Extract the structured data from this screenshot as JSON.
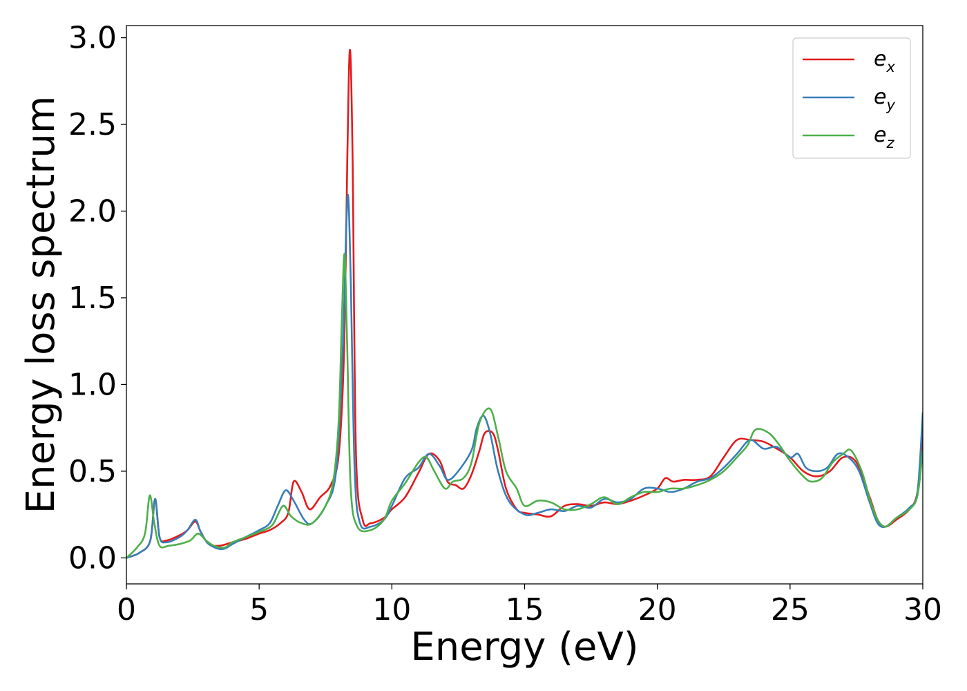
{
  "chart_data": {
    "type": "line",
    "xlabel": "Energy (eV)",
    "ylabel": "Energy loss spectrum",
    "xlim": [
      0,
      30
    ],
    "ylim": [
      -0.15,
      3.07
    ],
    "xticks": [
      0,
      5,
      10,
      15,
      20,
      25,
      30
    ],
    "yticks": [
      0.0,
      0.5,
      1.0,
      1.5,
      2.0,
      2.5,
      3.0
    ],
    "xtick_labels": [
      "0",
      "5",
      "10",
      "15",
      "20",
      "25",
      "30"
    ],
    "ytick_labels": [
      "0.0",
      "0.5",
      "1.0",
      "1.5",
      "2.0",
      "2.5",
      "3.0"
    ],
    "grid": false,
    "legend_position": "top-right",
    "series": [
      {
        "name": "e_x",
        "label_base": "e",
        "label_sub": "x",
        "color": "#e41a1c",
        "points": [
          [
            0,
            0
          ],
          [
            0.5,
            0.03
          ],
          [
            0.9,
            0.1
          ],
          [
            1.08,
            0.34
          ],
          [
            1.25,
            0.12
          ],
          [
            1.5,
            0.1
          ],
          [
            2.0,
            0.13
          ],
          [
            2.3,
            0.16
          ],
          [
            2.6,
            0.21
          ],
          [
            2.8,
            0.15
          ],
          [
            3.1,
            0.08
          ],
          [
            3.5,
            0.07
          ],
          [
            4.0,
            0.09
          ],
          [
            4.5,
            0.11
          ],
          [
            5.0,
            0.14
          ],
          [
            5.4,
            0.16
          ],
          [
            5.8,
            0.2
          ],
          [
            6.1,
            0.26
          ],
          [
            6.3,
            0.44
          ],
          [
            6.6,
            0.38
          ],
          [
            6.9,
            0.28
          ],
          [
            7.3,
            0.35
          ],
          [
            7.7,
            0.42
          ],
          [
            8.0,
            0.6
          ],
          [
            8.2,
            1.2
          ],
          [
            8.32,
            2.3
          ],
          [
            8.42,
            2.93
          ],
          [
            8.52,
            2.3
          ],
          [
            8.65,
            0.6
          ],
          [
            8.9,
            0.22
          ],
          [
            9.2,
            0.2
          ],
          [
            9.7,
            0.23
          ],
          [
            10.0,
            0.28
          ],
          [
            10.5,
            0.35
          ],
          [
            11.0,
            0.49
          ],
          [
            11.4,
            0.6
          ],
          [
            11.8,
            0.56
          ],
          [
            12.1,
            0.44
          ],
          [
            12.4,
            0.42
          ],
          [
            12.7,
            0.4
          ],
          [
            13.0,
            0.48
          ],
          [
            13.3,
            0.62
          ],
          [
            13.5,
            0.72
          ],
          [
            13.8,
            0.72
          ],
          [
            14.0,
            0.62
          ],
          [
            14.3,
            0.4
          ],
          [
            14.7,
            0.28
          ],
          [
            15.0,
            0.26
          ],
          [
            15.5,
            0.25
          ],
          [
            16.0,
            0.24
          ],
          [
            16.5,
            0.3
          ],
          [
            17.0,
            0.31
          ],
          [
            17.5,
            0.3
          ],
          [
            18.0,
            0.32
          ],
          [
            18.5,
            0.31
          ],
          [
            19.0,
            0.33
          ],
          [
            19.5,
            0.36
          ],
          [
            20.0,
            0.4
          ],
          [
            20.3,
            0.46
          ],
          [
            20.6,
            0.44
          ],
          [
            21.0,
            0.45
          ],
          [
            21.5,
            0.45
          ],
          [
            22.0,
            0.47
          ],
          [
            22.5,
            0.58
          ],
          [
            23.0,
            0.68
          ],
          [
            23.5,
            0.68
          ],
          [
            24.0,
            0.67
          ],
          [
            24.5,
            0.63
          ],
          [
            25.0,
            0.58
          ],
          [
            25.5,
            0.5
          ],
          [
            26.0,
            0.47
          ],
          [
            26.5,
            0.5
          ],
          [
            27.0,
            0.58
          ],
          [
            27.5,
            0.55
          ],
          [
            28.0,
            0.35
          ],
          [
            28.3,
            0.22
          ],
          [
            28.6,
            0.18
          ],
          [
            29.0,
            0.22
          ],
          [
            29.5,
            0.28
          ],
          [
            29.8,
            0.38
          ],
          [
            30.0,
            0.7
          ]
        ]
      },
      {
        "name": "e_y",
        "label_base": "e",
        "label_sub": "y",
        "color": "#377eb8",
        "points": [
          [
            0,
            0
          ],
          [
            0.5,
            0.03
          ],
          [
            0.9,
            0.1
          ],
          [
            1.08,
            0.34
          ],
          [
            1.25,
            0.12
          ],
          [
            1.5,
            0.09
          ],
          [
            2.0,
            0.12
          ],
          [
            2.3,
            0.16
          ],
          [
            2.6,
            0.22
          ],
          [
            2.8,
            0.15
          ],
          [
            3.1,
            0.08
          ],
          [
            3.6,
            0.05
          ],
          [
            4.0,
            0.08
          ],
          [
            4.5,
            0.12
          ],
          [
            5.0,
            0.16
          ],
          [
            5.4,
            0.2
          ],
          [
            5.7,
            0.3
          ],
          [
            6.0,
            0.39
          ],
          [
            6.3,
            0.33
          ],
          [
            6.7,
            0.22
          ],
          [
            7.0,
            0.2
          ],
          [
            7.5,
            0.3
          ],
          [
            7.9,
            0.5
          ],
          [
            8.15,
            1.2
          ],
          [
            8.28,
            1.9
          ],
          [
            8.36,
            2.08
          ],
          [
            8.45,
            1.6
          ],
          [
            8.6,
            0.5
          ],
          [
            8.8,
            0.2
          ],
          [
            9.2,
            0.18
          ],
          [
            9.7,
            0.22
          ],
          [
            10.0,
            0.3
          ],
          [
            10.5,
            0.46
          ],
          [
            11.0,
            0.52
          ],
          [
            11.4,
            0.6
          ],
          [
            11.8,
            0.53
          ],
          [
            12.1,
            0.45
          ],
          [
            12.5,
            0.5
          ],
          [
            13.0,
            0.62
          ],
          [
            13.2,
            0.75
          ],
          [
            13.45,
            0.82
          ],
          [
            13.7,
            0.72
          ],
          [
            14.0,
            0.5
          ],
          [
            14.4,
            0.33
          ],
          [
            15.0,
            0.25
          ],
          [
            15.5,
            0.26
          ],
          [
            16.0,
            0.28
          ],
          [
            16.5,
            0.27
          ],
          [
            17.0,
            0.3
          ],
          [
            17.5,
            0.29
          ],
          [
            18.0,
            0.34
          ],
          [
            18.5,
            0.32
          ],
          [
            19.0,
            0.34
          ],
          [
            19.5,
            0.4
          ],
          [
            20.0,
            0.4
          ],
          [
            20.5,
            0.38
          ],
          [
            21.0,
            0.4
          ],
          [
            21.5,
            0.44
          ],
          [
            22.0,
            0.46
          ],
          [
            22.5,
            0.52
          ],
          [
            23.0,
            0.6
          ],
          [
            23.5,
            0.68
          ],
          [
            24.0,
            0.63
          ],
          [
            24.5,
            0.64
          ],
          [
            25.0,
            0.58
          ],
          [
            25.3,
            0.6
          ],
          [
            25.6,
            0.52
          ],
          [
            26.0,
            0.5
          ],
          [
            26.4,
            0.52
          ],
          [
            26.8,
            0.6
          ],
          [
            27.2,
            0.58
          ],
          [
            27.6,
            0.5
          ],
          [
            28.0,
            0.32
          ],
          [
            28.3,
            0.2
          ],
          [
            28.6,
            0.18
          ],
          [
            29.0,
            0.23
          ],
          [
            29.5,
            0.29
          ],
          [
            29.8,
            0.38
          ],
          [
            30.0,
            0.84
          ]
        ]
      },
      {
        "name": "e_z",
        "label_base": "e",
        "label_sub": "z",
        "color": "#4daf4a",
        "points": [
          [
            0,
            0
          ],
          [
            0.4,
            0.06
          ],
          [
            0.7,
            0.14
          ],
          [
            0.88,
            0.36
          ],
          [
            1.05,
            0.2
          ],
          [
            1.25,
            0.07
          ],
          [
            1.6,
            0.07
          ],
          [
            2.0,
            0.08
          ],
          [
            2.4,
            0.1
          ],
          [
            2.7,
            0.14
          ],
          [
            3.0,
            0.1
          ],
          [
            3.3,
            0.07
          ],
          [
            3.7,
            0.06
          ],
          [
            4.0,
            0.09
          ],
          [
            4.5,
            0.12
          ],
          [
            5.0,
            0.15
          ],
          [
            5.5,
            0.19
          ],
          [
            5.9,
            0.3
          ],
          [
            6.2,
            0.24
          ],
          [
            6.6,
            0.2
          ],
          [
            7.0,
            0.2
          ],
          [
            7.5,
            0.3
          ],
          [
            7.8,
            0.45
          ],
          [
            8.0,
            0.8
          ],
          [
            8.12,
            1.4
          ],
          [
            8.22,
            1.75
          ],
          [
            8.32,
            1.2
          ],
          [
            8.45,
            0.4
          ],
          [
            8.7,
            0.18
          ],
          [
            9.2,
            0.16
          ],
          [
            9.7,
            0.22
          ],
          [
            10.0,
            0.33
          ],
          [
            10.5,
            0.43
          ],
          [
            11.0,
            0.55
          ],
          [
            11.3,
            0.58
          ],
          [
            11.6,
            0.5
          ],
          [
            12.0,
            0.4
          ],
          [
            12.3,
            0.44
          ],
          [
            12.7,
            0.46
          ],
          [
            13.0,
            0.55
          ],
          [
            13.3,
            0.78
          ],
          [
            13.7,
            0.86
          ],
          [
            14.0,
            0.7
          ],
          [
            14.3,
            0.5
          ],
          [
            14.7,
            0.4
          ],
          [
            15.0,
            0.3
          ],
          [
            15.5,
            0.33
          ],
          [
            16.0,
            0.32
          ],
          [
            16.5,
            0.28
          ],
          [
            17.0,
            0.28
          ],
          [
            17.5,
            0.31
          ],
          [
            18.0,
            0.35
          ],
          [
            18.5,
            0.31
          ],
          [
            19.0,
            0.35
          ],
          [
            19.5,
            0.38
          ],
          [
            20.0,
            0.38
          ],
          [
            20.5,
            0.4
          ],
          [
            21.0,
            0.4
          ],
          [
            21.5,
            0.42
          ],
          [
            22.0,
            0.45
          ],
          [
            22.5,
            0.5
          ],
          [
            23.0,
            0.58
          ],
          [
            23.4,
            0.65
          ],
          [
            23.7,
            0.74
          ],
          [
            24.2,
            0.72
          ],
          [
            24.6,
            0.65
          ],
          [
            25.0,
            0.56
          ],
          [
            25.5,
            0.47
          ],
          [
            25.8,
            0.44
          ],
          [
            26.2,
            0.46
          ],
          [
            26.6,
            0.55
          ],
          [
            27.0,
            0.6
          ],
          [
            27.3,
            0.62
          ],
          [
            27.7,
            0.5
          ],
          [
            28.0,
            0.34
          ],
          [
            28.3,
            0.22
          ],
          [
            28.6,
            0.18
          ],
          [
            29.0,
            0.23
          ],
          [
            29.5,
            0.28
          ],
          [
            29.8,
            0.36
          ],
          [
            30.0,
            0.62
          ]
        ]
      }
    ]
  }
}
